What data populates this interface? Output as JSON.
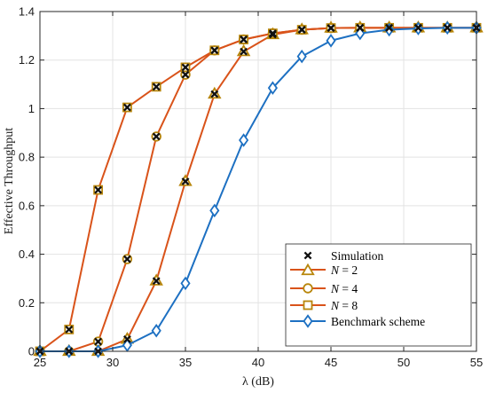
{
  "chart_data": {
    "type": "line",
    "xlabel": "λ (dB)",
    "ylabel": "Effective Throughput",
    "xlim": [
      25,
      55
    ],
    "ylim": [
      0,
      1.4
    ],
    "xticks": [
      "25",
      "30",
      "35",
      "40",
      "45",
      "50",
      "55"
    ],
    "yticks": [
      "0",
      "0.2",
      "0.4",
      "0.6",
      "0.8",
      "1",
      "1.2",
      "1.4"
    ],
    "grid": true,
    "legend_position": "bottom-right",
    "x": [
      25,
      27,
      29,
      31,
      33,
      35,
      37,
      39,
      41,
      43,
      45,
      47,
      49,
      51,
      53,
      55
    ],
    "series": [
      {
        "name": "N = 2",
        "label_var": "N",
        "label_rest": " = 2",
        "color": "#d9531a",
        "marker": "triangle",
        "values": [
          0,
          0,
          0,
          0.05,
          0.29,
          0.7,
          1.06,
          1.235,
          1.305,
          1.325,
          1.332,
          1.333,
          1.333,
          1.333,
          1.333,
          1.333
        ]
      },
      {
        "name": "N = 4",
        "label_var": "N",
        "label_rest": " = 4",
        "color": "#d9531a",
        "marker": "circle",
        "values": [
          0,
          0,
          0.04,
          0.38,
          0.885,
          1.14,
          1.24,
          1.285,
          1.31,
          1.325,
          1.332,
          1.333,
          1.333,
          1.333,
          1.333,
          1.333
        ]
      },
      {
        "name": "N = 8",
        "label_var": "N",
        "label_rest": " = 8",
        "color": "#d9531a",
        "marker": "square",
        "values": [
          0,
          0.09,
          0.665,
          1.005,
          1.09,
          1.17,
          1.24,
          1.285,
          1.31,
          1.325,
          1.332,
          1.333,
          1.333,
          1.333,
          1.333,
          1.333
        ]
      },
      {
        "name": "Benchmark scheme",
        "color": "#1d70c2",
        "marker": "diamond",
        "values": [
          0,
          0,
          0,
          0.025,
          0.085,
          0.28,
          0.58,
          0.87,
          1.085,
          1.215,
          1.28,
          1.31,
          1.325,
          1.33,
          1.333,
          1.333
        ]
      }
    ],
    "simulation": {
      "name": "Simulation",
      "color": "#111111",
      "marker": "x"
    },
    "colors": {
      "marker_edge": "#b8860b",
      "marker_face": "#ffffff",
      "grid": "#e3e3e3",
      "axis": "#262626"
    }
  }
}
